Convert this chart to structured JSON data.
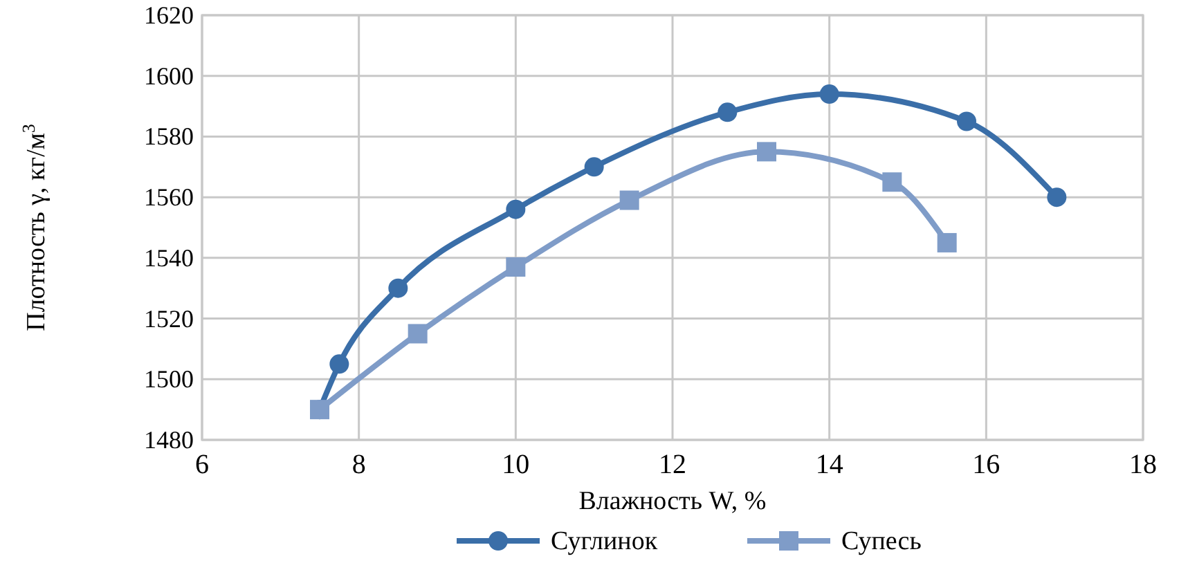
{
  "chart_data": {
    "type": "line",
    "xlabel": "Влажность W, %",
    "ylabel": "Плотность γ, кг/м$^{3}$",
    "xlim": [
      6,
      18
    ],
    "xticks": [
      6,
      8,
      10,
      12,
      14,
      16,
      18
    ],
    "ylim": [
      1480,
      1620
    ],
    "yticks": [
      1480,
      1500,
      1520,
      1540,
      1560,
      1580,
      1600,
      1620
    ],
    "grid": true,
    "legend": "bottom",
    "series": [
      {
        "name": "Суглинок",
        "color": "#3a6ea8",
        "marker": "circle",
        "x": [
          7.5,
          7.75,
          8.5,
          10,
          11,
          12.7,
          14,
          15.75,
          16.9
        ],
        "values": [
          1490,
          1505,
          1530,
          1556,
          1570,
          1588,
          1594,
          1585,
          1560
        ]
      },
      {
        "name": "Супесь",
        "color": "#7f9cc8",
        "marker": "square",
        "x": [
          7.5,
          8.75,
          10,
          11.45,
          13.2,
          14.8,
          15.5
        ],
        "values": [
          1490,
          1515,
          1537,
          1559,
          1575,
          1565,
          1545
        ]
      }
    ]
  }
}
